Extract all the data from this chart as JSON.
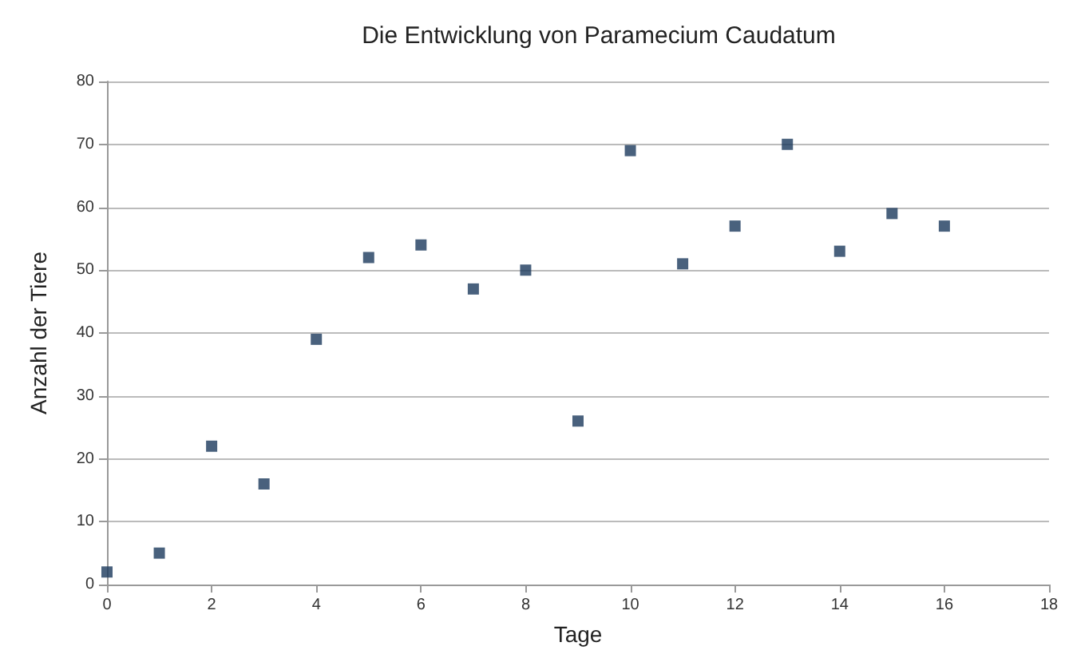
{
  "chart_data": {
    "type": "scatter",
    "title": "Die Entwicklung von Paramecium Caudatum",
    "xlabel": "Tage",
    "ylabel": "Anzahl der Tiere",
    "x": [
      0,
      1,
      2,
      3,
      4,
      5,
      6,
      7,
      8,
      9,
      10,
      11,
      12,
      13,
      14,
      15,
      16
    ],
    "series": [
      {
        "color": "#1b3a5c",
        "values": [
          2,
          5,
          22,
          16,
          39,
          52,
          54,
          47,
          50,
          26,
          69,
          51,
          57,
          70,
          53,
          59,
          57
        ]
      }
    ],
    "xlim": [
      0,
      18
    ],
    "xticks": [
      0,
      2,
      4,
      6,
      8,
      10,
      12,
      14,
      16,
      18
    ],
    "ylim": [
      0,
      80
    ],
    "yticks": [
      0,
      10,
      20,
      30,
      40,
      50,
      60,
      70,
      80
    ],
    "grid": "y",
    "marker": "square"
  }
}
